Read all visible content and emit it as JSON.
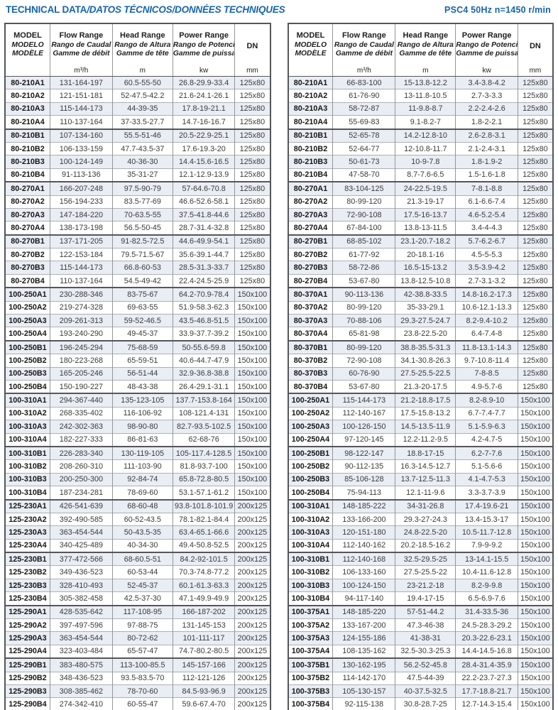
{
  "page": {
    "title_main": "TECHNICAL DATA",
    "title_i18n": "/DATOS TÉCNICOS/DONNÉES TECHNIQUES",
    "spec": "PSC4  50Hz  n=1450 r/min"
  },
  "colors": {
    "accent": "#1564ac",
    "stripe": "#e9edf4"
  },
  "columns": {
    "model": {
      "l1": "MODEL",
      "l2": "MODELO",
      "l3": "MODÈLE",
      "unit": ""
    },
    "flow": {
      "l1": "Flow Range",
      "l2": "Rango de Caudal",
      "l3": "Gamme de débit",
      "unit": "m³/h"
    },
    "head": {
      "l1": "Head Range",
      "l2": "Rango de Altura",
      "l3": "Gamme de tête",
      "unit": "m"
    },
    "power": {
      "l1": "Power Range",
      "l2": "Rango de Potencia",
      "l3": "Gamme de puissance",
      "unit": "kw"
    },
    "dn": {
      "l1": "DN",
      "unit": "mm"
    }
  },
  "tables": [
    {
      "name": "left",
      "rows": [
        [
          "80-210A1",
          "131-164-197",
          "60.5-55-50",
          "26.8-29.9-33.4",
          "125x80"
        ],
        [
          "80-210A2",
          "121-151-181",
          "52-47.5-42.2",
          "21.6-24.1-26.1",
          "125x80"
        ],
        [
          "80-210A3",
          "115-144-173",
          "44-39-35",
          "17.8-19-21.1",
          "125x80"
        ],
        [
          "80-210A4",
          "110-137-164",
          "37-33.5-27.7",
          "14.7-16-16.7",
          "125x80"
        ],
        [
          "80-210B1",
          "107-134-160",
          "55.5-51-46",
          "20.5-22.9-25.1",
          "125x80"
        ],
        [
          "80-210B2",
          "106-133-159",
          "47.7-43.5-37",
          "17.6-19.3-20",
          "125x80"
        ],
        [
          "80-210B3",
          "100-124-149",
          "40-36-30",
          "14.4-15.6-16.5",
          "125x80"
        ],
        [
          "80-210B4",
          "91-113-136",
          "35-31-27",
          "12.1-12.9-13.9",
          "125x80"
        ],
        [
          "80-270A1",
          "166-207-248",
          "97.5-90-79",
          "57-64.6-70.8",
          "125x80"
        ],
        [
          "80-270A2",
          "156-194-233",
          "83.5-77-69",
          "46.6-52.6-58.1",
          "125x80"
        ],
        [
          "80-270A3",
          "147-184-220",
          "70-63.5-55",
          "37.5-41.8-44.6",
          "125x80"
        ],
        [
          "80-270A4",
          "138-173-198",
          "56.5-50-45",
          "28.7-31.4-32.8",
          "125x80"
        ],
        [
          "80-270B1",
          "137-171-205",
          "91-82.5-72.5",
          "44.6-49.9-54.1",
          "125x80"
        ],
        [
          "80-270B2",
          "122-153-184",
          "79.5-71.5-67",
          "35.6-39.1-44.7",
          "125x80"
        ],
        [
          "80-270B3",
          "115-144-173",
          "66.8-60-53",
          "28.5-31.3-33.7",
          "125x80"
        ],
        [
          "80-270B4",
          "110-137-164",
          "54.5-49-42",
          "22.4-24.5-25.9",
          "125x80"
        ],
        [
          "100-250A1",
          "230-288-346",
          "83-75-67",
          "64.2-70.9-78.4",
          "150x100"
        ],
        [
          "100-250A2",
          "219-274-328",
          "69-63-55",
          "51.9-58.3-62.3",
          "150x100"
        ],
        [
          "100-250A3",
          "209-261-313",
          "59-52-46.5",
          "43.5-46.8-51.5",
          "150x100"
        ],
        [
          "100-250A4",
          "193-240-290",
          "49-45-37",
          "33.9-37.7-39.2",
          "150x100"
        ],
        [
          "100-250B1",
          "196-245-294",
          "75-68-59",
          "50-55.6-59.8",
          "150x100"
        ],
        [
          "100-250B2",
          "180-223-268",
          "65-59-51",
          "40.6-44.7-47.9",
          "150x100"
        ],
        [
          "100-250B3",
          "165-205-246",
          "56-51-44",
          "32.9-36.8-38.8",
          "150x100"
        ],
        [
          "100-250B4",
          "150-190-227",
          "48-43-38",
          "26.4-29.1-31.1",
          "150x100"
        ],
        [
          "100-310A1",
          "294-367-440",
          "135-123-105",
          "137.7-153.8-164",
          "150x100"
        ],
        [
          "100-310A2",
          "268-335-402",
          "116-106-92",
          "108-121.4-131",
          "150x100"
        ],
        [
          "100-310A3",
          "242-302-363",
          "98-90-80",
          "82.7-93.5-102.5",
          "150x100"
        ],
        [
          "100-310A4",
          "182-227-333",
          "86-81-63",
          "62-68-76",
          "150x100"
        ],
        [
          "100-310B1",
          "226-283-340",
          "130-119-105",
          "105-117.4-128.5",
          "150x100"
        ],
        [
          "100-310B2",
          "208-260-310",
          "111-103-90",
          "81.8-93.7-100",
          "150x100"
        ],
        [
          "100-310B3",
          "200-250-300",
          "92-84-74",
          "65.8-72.8-80.5",
          "150x100"
        ],
        [
          "100-310B4",
          "187-234-281",
          "78-69-60",
          "53.1-57.1-61.2",
          "150x100"
        ],
        [
          "125-230A1",
          "426-541-639",
          "68-60-48",
          "93.8-101.8-101.9",
          "200x125"
        ],
        [
          "125-230A2",
          "392-490-585",
          "60-52-43.5",
          "78.1-82.1-84.4",
          "200x125"
        ],
        [
          "125-230A3",
          "363-454-544",
          "50-43.5-35",
          "63.4-65.1-66.6",
          "200x125"
        ],
        [
          "125-230A4",
          "340-425-489",
          "40-34-30",
          "49.4-50.8-52.5",
          "200x125"
        ],
        [
          "125-230B1",
          "377-472-566",
          "68-60.5-51",
          "84.2-92-101.5",
          "200x125"
        ],
        [
          "125-230B2",
          "349-436-523",
          "60-53-44",
          "70.3-74.8-77.2",
          "200x125"
        ],
        [
          "125-230B3",
          "328-410-493",
          "52-45-37",
          "60.1-61.3-63.3",
          "200x125"
        ],
        [
          "125-230B4",
          "305-382-458",
          "42.5-37-30",
          "47.1-49.9-49.9",
          "200x125"
        ],
        [
          "125-290A1",
          "428-535-642",
          "117-108-95",
          "166-187-202",
          "200x125"
        ],
        [
          "125-290A2",
          "397-497-596",
          "97-88-75",
          "131-145-153",
          "200x125"
        ],
        [
          "125-290A3",
          "363-454-544",
          "80-72-62",
          "101-111-117",
          "200x125"
        ],
        [
          "125-290A4",
          "323-403-484",
          "65-57-47",
          "74.7-80.2-80.5",
          "200x125"
        ],
        [
          "125-290B1",
          "383-480-575",
          "113-100-85.5",
          "145-157-166",
          "200x125"
        ],
        [
          "125-290B2",
          "348-436-523",
          "93.5-83.5-70",
          "112-121-126",
          "200x125"
        ],
        [
          "125-290B3",
          "308-385-462",
          "78-70-60",
          "84.5-93-96.9",
          "200x125"
        ],
        [
          "125-290B4",
          "274-342-410",
          "60-55-47",
          "59.6-67.4-70",
          "200x125"
        ]
      ]
    },
    {
      "name": "right",
      "rows": [
        [
          "80-210A1",
          "66-83-100",
          "15-13.8-12.2",
          "3.4-3.8-4.2",
          "125x80"
        ],
        [
          "80-210A2",
          "61-76-90",
          "13-11.8-10.5",
          "2.7-3-3.3",
          "125x80"
        ],
        [
          "80-210A3",
          "58-72-87",
          "11-9.8-8.7",
          "2.2-2.4-2.6",
          "125x80"
        ],
        [
          "80-210A4",
          "55-69-83",
          "9.1-8.2-7",
          "1.8-2-2.1",
          "125x80"
        ],
        [
          "80-210B1",
          "52-65-78",
          "14.2-12.8-10",
          "2.6-2.8-3.1",
          "125x80"
        ],
        [
          "80-210B2",
          "52-64-77",
          "12-10.8-11.7",
          "2.1-2.4-3.1",
          "125x80"
        ],
        [
          "80-210B3",
          "50-61-73",
          "10-9-7.8",
          "1.8-1.9-2",
          "125x80"
        ],
        [
          "80-210B4",
          "47-58-70",
          "8.7-7.6-6.5",
          "1.5-1.6-1.8",
          "125x80"
        ],
        [
          "80-270A1",
          "83-104-125",
          "24-22.5-19.5",
          "7-8.1-8.8",
          "125x80"
        ],
        [
          "80-270A2",
          "80-99-120",
          "21.3-19-17",
          "6.1-6.6-7.4",
          "125x80"
        ],
        [
          "80-270A3",
          "72-90-108",
          "17.5-16-13.7",
          "4.6-5.2-5.4",
          "125x80"
        ],
        [
          "80-270A4",
          "67-84-100",
          "13.8-13-11.5",
          "3.4-4-4.3",
          "125x80"
        ],
        [
          "80-270B1",
          "68-85-102",
          "23.1-20.7-18.2",
          "5.7-6.2-6.7",
          "125x80"
        ],
        [
          "80-270B2",
          "61-77-92",
          "20-18.1-16",
          "4.5-5-5.3",
          "125x80"
        ],
        [
          "80-270B3",
          "58-72-86",
          "16.5-15-13.2",
          "3.5-3.9-4.2",
          "125x80"
        ],
        [
          "80-270B4",
          "53-67-80",
          "13.8-12.5-10.8",
          "2.7-3.1-3.2",
          "125x80"
        ],
        [
          "80-370A1",
          "90-113-136",
          "42-38.8-33.5",
          "14.8-16.2-17.3",
          "125x80"
        ],
        [
          "80-370A2",
          "80-99-120",
          "35-33-29.1",
          "10.6-12.1-13.3",
          "125x80"
        ],
        [
          "80-370A3",
          "70-88-106",
          "29.3-27.5-24.7",
          "8.2-9.4-10.2",
          "125x80"
        ],
        [
          "80-370A4",
          "65-81-98",
          "23.8-22.5-20",
          "6.4-7.4-8",
          "125x80"
        ],
        [
          "80-370B1",
          "80-99-120",
          "38.8-35.5-31.3",
          "11.8-13.1-14.3",
          "125x80"
        ],
        [
          "80-370B2",
          "72-90-108",
          "34.1-30.8-26.3",
          "9.7-10.8-11.4",
          "125x80"
        ],
        [
          "80-370B3",
          "60-76-90",
          "27.5-25.5-22.5",
          "7-8-8.5",
          "125x80"
        ],
        [
          "80-370B4",
          "53-67-80",
          "21.3-20-17.5",
          "4.9-5.7-6",
          "125x80"
        ],
        [
          "100-250A1",
          "115-144-173",
          "21.2-18.8-17.5",
          "8.2-8.9-10",
          "150x100"
        ],
        [
          "100-250A2",
          "112-140-167",
          "17.5-15.8-13.2",
          "6.7-7.4-7.7",
          "150x100"
        ],
        [
          "100-250A3",
          "100-126-150",
          "14.5-13.5-11.9",
          "5.1-5.9-6.3",
          "150x100"
        ],
        [
          "100-250A4",
          "97-120-145",
          "12.2-11.2-9.5",
          "4.2-4.7-5",
          "150x100"
        ],
        [
          "100-250B1",
          "98-122-147",
          "18.8-17-15",
          "6.2-7-7.6",
          "150x100"
        ],
        [
          "100-250B2",
          "90-112-135",
          "16.3-14.5-12.7",
          "5.1-5.6-6",
          "150x100"
        ],
        [
          "100-250B3",
          "85-106-128",
          "13.7-12.5-11.3",
          "4.1-4.7-5.3",
          "150x100"
        ],
        [
          "100-250B4",
          "75-94-113",
          "12.1-11-9.6",
          "3.3-3.7-3.9",
          "150x100"
        ],
        [
          "100-310A1",
          "148-185-222",
          "34-31-26.8",
          "17.4-19.6-21",
          "150x100"
        ],
        [
          "100-310A2",
          "133-166-200",
          "29.3-27-24.3",
          "13.4-15.3-17",
          "150x100"
        ],
        [
          "100-310A3",
          "120-151-180",
          "24.8-22.5-20",
          "10.5-11.7-12.8",
          "150x100"
        ],
        [
          "100-310A4",
          "112-140-162",
          "20.2-18.5-16.2",
          "7.9-9-9.2",
          "150x100"
        ],
        [
          "100-310B1",
          "112-140-168",
          "32.5-29.5-25",
          "13-14.1-15.5",
          "150x100"
        ],
        [
          "100-310B2",
          "106-133-160",
          "27.5-25.5-22",
          "10.4-11.6-12.8",
          "150x100"
        ],
        [
          "100-310B3",
          "100-124-150",
          "23-21.2-18",
          "8.2-9-9.8",
          "150x100"
        ],
        [
          "100-310B4",
          "94-117-140",
          "19.4-17-15",
          "6.5-6.9-7.6",
          "150x100"
        ],
        [
          "100-375A1",
          "148-185-220",
          "57-51-44.2",
          "31.4-33.5-36",
          "150x100"
        ],
        [
          "100-375A2",
          "133-167-200",
          "47.3-46-38",
          "24.5-28.3-29.2",
          "150x100"
        ],
        [
          "100-375A3",
          "124-155-186",
          "41-38-31",
          "20.3-22.6-23.1",
          "150x100"
        ],
        [
          "100-375A4",
          "108-135-162",
          "32.5-30.3-25.3",
          "14.4-14.5-16.8",
          "150x100"
        ],
        [
          "100-375B1",
          "130-162-195",
          "56.2-52-45.8",
          "28.4-31.4-35.9",
          "150x100"
        ],
        [
          "100-375B2",
          "114-142-170",
          "47.5-44-39",
          "22.2-23.7-27.3",
          "150x100"
        ],
        [
          "100-375B3",
          "105-130-157",
          "40-37.5-32.5",
          "17.7-18.8-21.7",
          "150x100"
        ],
        [
          "100-375B4",
          "92-115-138",
          "30.8-28.7-25",
          "12.7-14.3-15.4",
          "150x100"
        ]
      ]
    }
  ]
}
